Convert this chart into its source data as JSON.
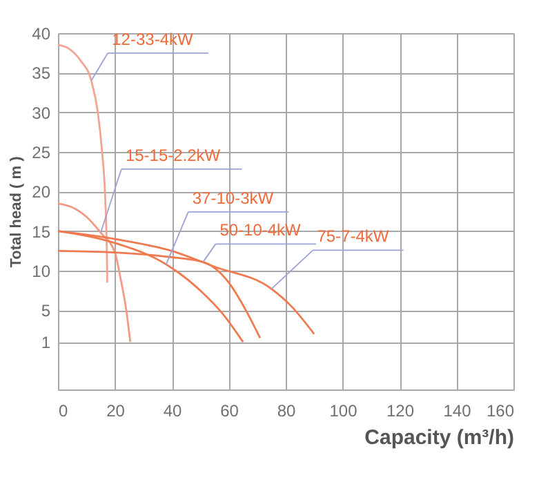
{
  "chart_data": {
    "type": "line",
    "xlabel": "Capacity (m³/h)",
    "ylabel": "Total head ( m )",
    "xlim": [
      0,
      160
    ],
    "xticks": [
      0,
      20,
      40,
      60,
      80,
      100,
      120,
      140,
      160
    ],
    "ylim": [
      -5,
      40
    ],
    "yticks": [
      1,
      5,
      10,
      15,
      20,
      25,
      30,
      35,
      40
    ],
    "grid": true,
    "marker": "none",
    "line_style": "solid",
    "series": [
      {
        "color": "#f4a492",
        "x": [
          0,
          4,
          8,
          11.7,
          14,
          15.5,
          16.5,
          17,
          17.2,
          17.3
        ],
        "values": [
          38.5,
          38,
          36.5,
          34,
          30,
          25,
          20,
          15,
          12,
          8.5
        ]
      },
      {
        "color": "#f49a84",
        "x": [
          0,
          5,
          10,
          15,
          20,
          22,
          24,
          25.4
        ],
        "values": [
          18.5,
          18,
          16.8,
          14.8,
          12.3,
          9,
          5,
          1
        ]
      },
      {
        "color": "#f07a50",
        "x": [
          0,
          20,
          38,
          50,
          58,
          65
        ],
        "values": [
          15,
          13.5,
          10.8,
          7.5,
          4.5,
          1
        ]
      },
      {
        "color": "#f07a50",
        "x": [
          0,
          20,
          40,
          51,
          60,
          66,
          71
        ],
        "values": [
          12.5,
          12.3,
          11.7,
          11.1,
          8.5,
          5,
          1.5
        ]
      },
      {
        "color": "#f07a50",
        "x": [
          0,
          20,
          40,
          55,
          75,
          82,
          90
        ],
        "values": [
          15,
          14,
          12.5,
          10.5,
          7.7,
          5.5,
          2
        ]
      }
    ],
    "annotations": [
      {
        "text": "12-33-4kW",
        "x": 11.7,
        "y": 34
      },
      {
        "text": "15-15-2.2kW",
        "x": 15,
        "y": 14.8
      },
      {
        "text": "37-10-3kW",
        "x": 38,
        "y": 10.8
      },
      {
        "text": "50-10-4kW",
        "x": 51,
        "y": 11.1
      },
      {
        "text": "75-7-4kW",
        "x": 75,
        "y": 7.7
      }
    ]
  }
}
